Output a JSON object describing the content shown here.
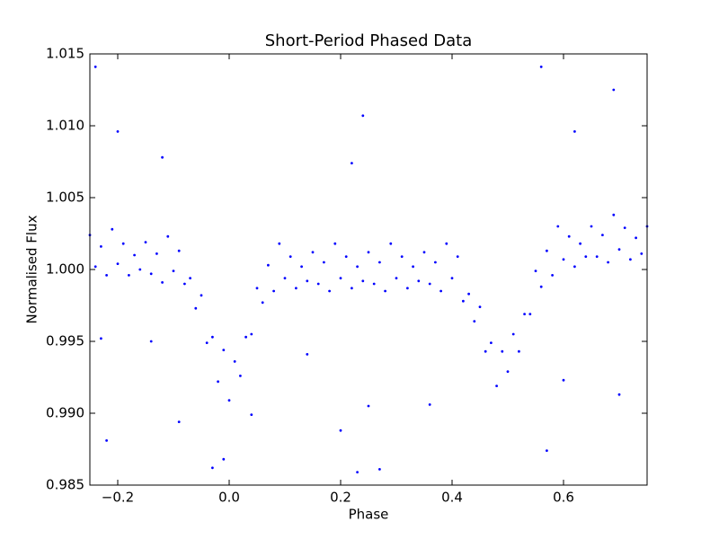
{
  "chart_data": {
    "type": "scatter",
    "title": "Short-Period Phased Data",
    "x_label": "Phase",
    "y_label": "Normalised Flux",
    "color": "#0000ff",
    "xlim": [
      -0.25,
      0.75
    ],
    "ylim": [
      0.985,
      1.015
    ],
    "xticks": [
      {
        "value": -0.2,
        "label": "−0.2"
      },
      {
        "value": 0,
        "label": "0.0"
      },
      0.2,
      0.4,
      0.6
    ],
    "yticks": [
      0.985,
      {
        "value": 0.99,
        "label": "0.990"
      },
      0.995,
      {
        "value": 1,
        "label": "1.000"
      },
      1.005,
      {
        "value": 1.01,
        "label": "1.010"
      },
      1.015
    ],
    "x": [
      -0.25,
      -0.24,
      -0.23,
      -0.22,
      -0.21,
      -0.2,
      -0.19,
      -0.18,
      -0.17,
      -0.16,
      -0.15,
      -0.14,
      -0.13,
      -0.12,
      -0.11,
      -0.1,
      -0.09,
      -0.08,
      -0.07,
      -0.06,
      -0.05,
      -0.04,
      -0.03,
      -0.02,
      -0.01,
      0,
      0.01,
      0.02,
      0.03,
      0.04,
      0.05,
      0.06,
      0.07,
      0.08,
      0.09,
      0.1,
      0.11,
      0.12,
      0.13,
      0.14,
      0.15,
      0.16,
      0.17,
      0.18,
      0.19,
      0.2,
      0.21,
      0.22,
      0.23,
      0.24,
      0.25,
      0.26,
      0.27,
      0.28,
      0.29,
      0.3,
      0.31,
      0.32,
      0.33,
      0.34,
      0.35,
      0.36,
      0.37,
      0.38,
      0.39,
      0.4,
      0.41,
      0.42,
      0.43,
      0.44,
      0.45,
      0.46,
      0.47,
      0.48,
      0.49,
      0.5,
      0.51,
      0.52,
      0.53,
      0.54,
      0.55,
      0.56,
      0.57,
      0.58,
      0.59,
      0.6,
      0.61,
      0.62,
      0.63,
      0.64,
      0.65,
      0.66,
      0.67,
      0.68,
      0.69,
      0.7,
      0.71,
      0.72,
      0.73,
      0.74,
      0.75,
      -0.24,
      -0.22,
      -0.2,
      -0.23,
      -0.14,
      -0.09,
      -0.03,
      -0.01,
      0.04,
      0.2,
      0.24,
      0.27,
      0.23,
      0.22,
      0.56,
      0.57,
      0.6,
      0.69,
      0.7,
      0.62,
      -0.12,
      0.36,
      0.25,
      0.14
    ],
    "values": [
      1.0024,
      1.0002,
      1.0016,
      0.9996,
      1.0028,
      1.0004,
      1.0018,
      0.9996,
      1.001,
      1,
      1.0019,
      0.9997,
      1.0011,
      0.9991,
      1.0023,
      0.9999,
      1.0013,
      0.999,
      0.9994,
      0.9973,
      0.9982,
      0.9949,
      0.9953,
      0.9922,
      0.9944,
      0.9909,
      0.9936,
      0.9926,
      0.9953,
      0.9955,
      0.9987,
      0.9977,
      1.0003,
      0.9985,
      1.0018,
      0.9994,
      1.0009,
      0.9987,
      1.0002,
      0.9992,
      1.0012,
      0.999,
      1.0005,
      0.9985,
      1.0018,
      0.9994,
      1.0009,
      0.9987,
      1.0002,
      0.9992,
      1.0012,
      0.999,
      1.0005,
      0.9985,
      1.0018,
      0.9994,
      1.0009,
      0.9987,
      1.0002,
      0.9992,
      1.0012,
      0.999,
      1.0005,
      0.9985,
      1.0018,
      0.9994,
      1.0009,
      0.9978,
      0.9983,
      0.9964,
      0.9974,
      0.9943,
      0.9949,
      0.9919,
      0.9943,
      0.9929,
      0.9955,
      0.9943,
      0.9969,
      0.9969,
      0.9999,
      0.9988,
      1.0013,
      0.9996,
      1.003,
      1.0007,
      1.0023,
      1.0002,
      1.0018,
      1.0009,
      1.003,
      1.0009,
      1.0024,
      1.0005,
      1.0038,
      1.0014,
      1.0029,
      1.0007,
      1.0022,
      1.0011,
      1.003,
      1.0141,
      0.9881,
      1.0096,
      0.9952,
      0.995,
      0.9894,
      0.9862,
      0.9868,
      0.9899,
      0.9888,
      1.0107,
      0.9861,
      0.9859,
      1.0074,
      1.0141,
      0.9874,
      0.9923,
      1.0125,
      0.9913,
      1.0096,
      1.0078,
      0.9906,
      0.9905,
      0.9941
    ]
  }
}
